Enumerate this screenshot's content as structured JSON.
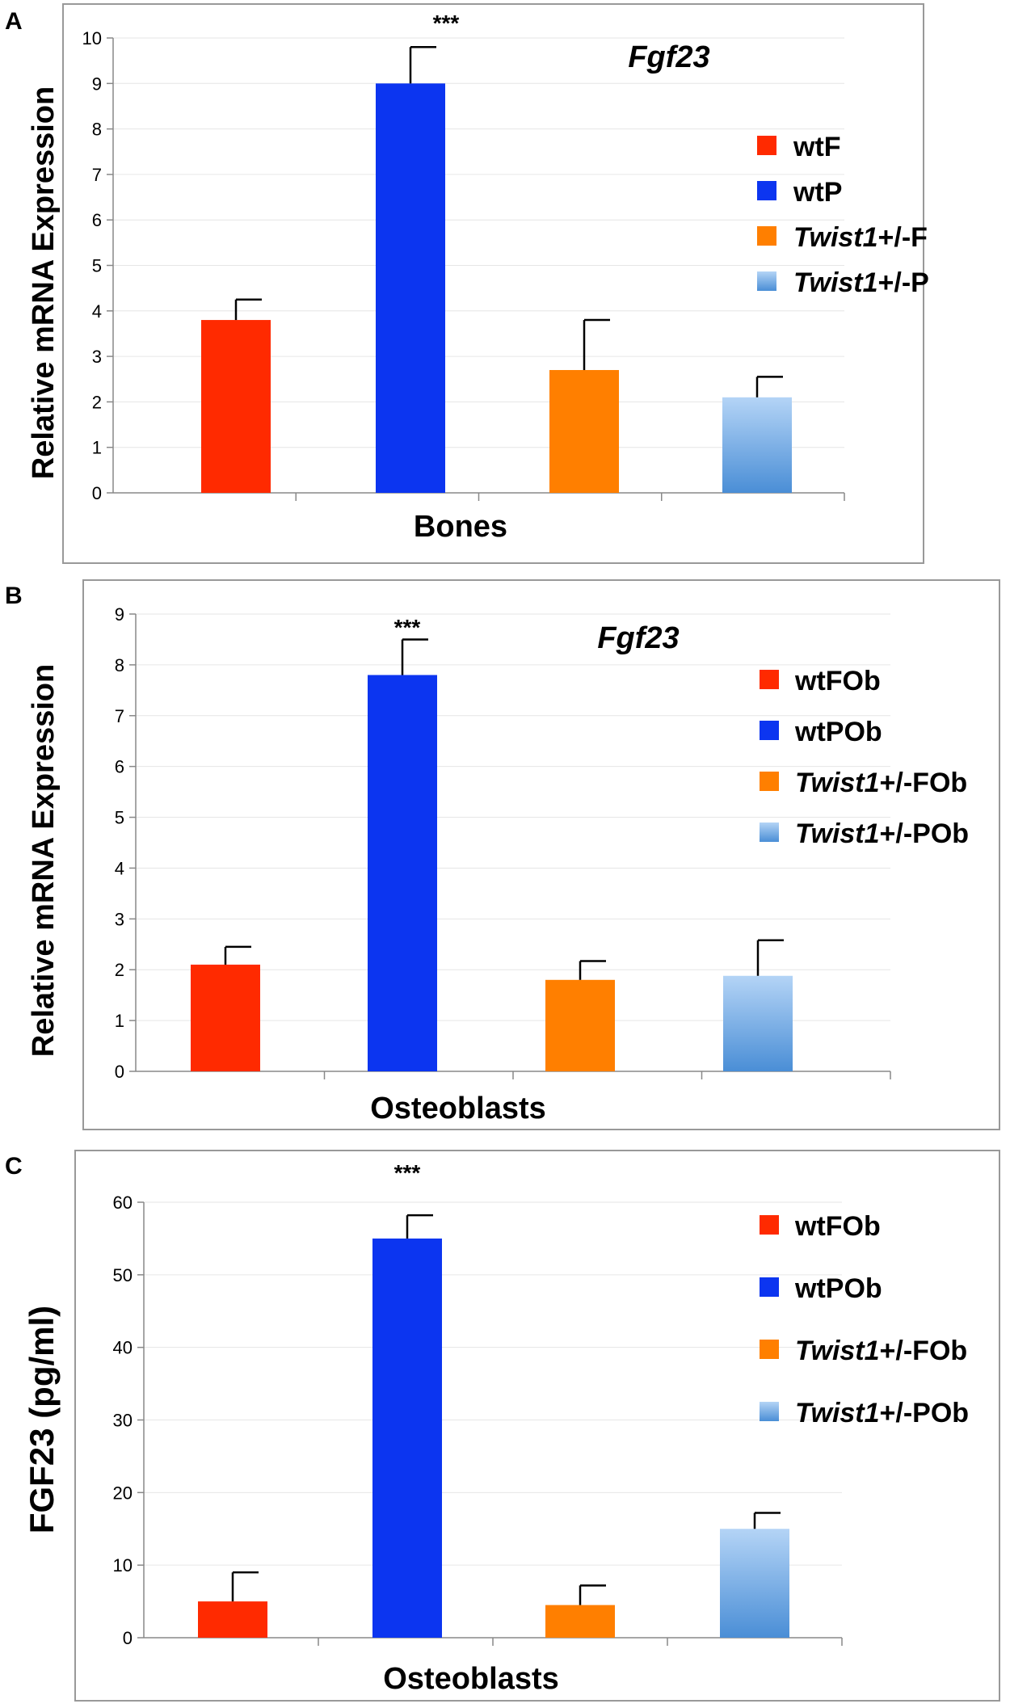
{
  "colors": {
    "red": "#ff2a00",
    "blue": "#0c35f0",
    "orange": "#ff7f00",
    "lightblue_top": "#b4d4f6",
    "lightblue_bottom": "#4a8ed6",
    "frame": "#999999",
    "axis": "#888888"
  },
  "chart_data": [
    {
      "panel": "A",
      "type": "bar",
      "title": "Fgf23",
      "xlabel": "Bones",
      "ylabel": "Relative mRNA Expression",
      "ylim": [
        0,
        10
      ],
      "yticks": [
        "0",
        "1",
        "2",
        "3",
        "4",
        "5",
        "6",
        "7",
        "8",
        "9",
        "10"
      ],
      "significance": "***",
      "legend_position": "right",
      "series": [
        {
          "legend_italic": "",
          "legend_plain": "wtF",
          "value": 3.8,
          "error": 0.45,
          "color": "red"
        },
        {
          "legend_italic": "",
          "legend_plain": "wtP",
          "value": 9.0,
          "error": 0.8,
          "color": "blue"
        },
        {
          "legend_italic": "Twist1",
          "legend_plain": "+/-F",
          "value": 2.7,
          "error": 1.1,
          "color": "orange"
        },
        {
          "legend_italic": "Twist1",
          "legend_plain": "+/-P",
          "value": 2.1,
          "error": 0.45,
          "color": "lightblue"
        }
      ]
    },
    {
      "panel": "B",
      "type": "bar",
      "title": "Fgf23",
      "xlabel": "Osteoblasts",
      "ylabel": "Relative mRNA Expression",
      "ylim": [
        0,
        9
      ],
      "yticks": [
        "0",
        "1",
        "2",
        "3",
        "4",
        "5",
        "6",
        "7",
        "8",
        "9"
      ],
      "significance": "***",
      "legend_position": "right",
      "series": [
        {
          "legend_italic": "",
          "legend_plain": "wtFOb",
          "value": 2.1,
          "error": 0.35,
          "color": "red"
        },
        {
          "legend_italic": "",
          "legend_plain": "wtPOb",
          "value": 7.8,
          "error": 0.7,
          "color": "blue"
        },
        {
          "legend_italic": "Twist1",
          "legend_plain": "+/-FOb",
          "value": 1.8,
          "error": 0.37,
          "color": "orange"
        },
        {
          "legend_italic": "Twist1",
          "legend_plain": "+/-POb",
          "value": 1.88,
          "error": 0.7,
          "color": "lightblue"
        }
      ]
    },
    {
      "panel": "C",
      "type": "bar",
      "title": "",
      "xlabel": "Osteoblasts",
      "ylabel": "FGF23 (pg/ml)",
      "ylim": [
        0,
        60
      ],
      "yticks": [
        "0",
        "10",
        "20",
        "30",
        "40",
        "50",
        "60"
      ],
      "significance": "***",
      "legend_position": "right",
      "series": [
        {
          "legend_italic": "",
          "legend_plain": "wtFOb",
          "value": 5,
          "error": 4,
          "color": "red"
        },
        {
          "legend_italic": "",
          "legend_plain": "wtPOb",
          "value": 55,
          "error": 3.2,
          "color": "blue"
        },
        {
          "legend_italic": "Twist1",
          "legend_plain": "+/-FOb",
          "value": 4.5,
          "error": 2.7,
          "color": "orange"
        },
        {
          "legend_italic": "Twist1",
          "legend_plain": "+/-POb",
          "value": 15,
          "error": 2.2,
          "color": "lightblue"
        }
      ]
    }
  ]
}
